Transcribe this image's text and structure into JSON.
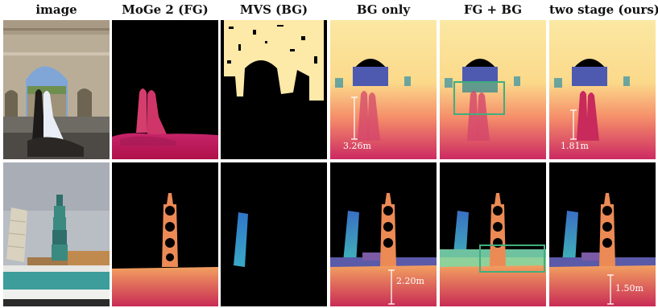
{
  "columns": [
    {
      "label": "image"
    },
    {
      "label": "MoGe 2 (FG)"
    },
    {
      "label": "MVS (BG)"
    },
    {
      "label": "BG only"
    },
    {
      "label": "FG + BG"
    },
    {
      "label": "two stage (ours)"
    }
  ],
  "rows": [
    {
      "scene": "arch-couple",
      "measurements": {
        "bg_only": "3.26m",
        "two_stage": "1.81m"
      }
    },
    {
      "scene": "human-tower-pisa",
      "measurements": {
        "bg_only": "2.20m",
        "two_stage": "1.50m"
      }
    }
  ],
  "colors": {
    "highlight_box": "#3fae7d",
    "background": "#000000",
    "depth_near": "#c2185b",
    "depth_far": "#fbe8a3"
  }
}
